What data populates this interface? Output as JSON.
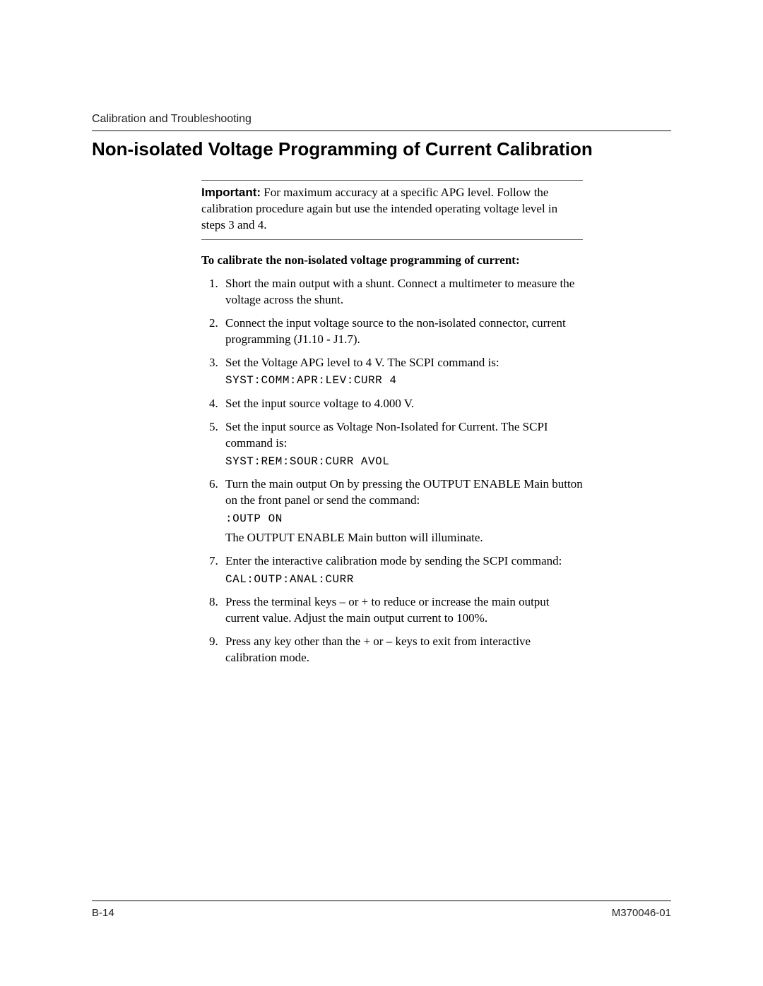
{
  "header": {
    "breadcrumb": "Calibration and Troubleshooting"
  },
  "title": "Non-isolated Voltage Programming of Current Calibration",
  "important": {
    "label": "Important:",
    "text": "For maximum accuracy at a specific APG level. Follow the calibration procedure again but use the intended operating voltage level in steps 3 and 4."
  },
  "subheading": "To calibrate the non-isolated voltage programming of current:",
  "steps": {
    "s1": "Short the main output with a shunt. Connect a multimeter to measure the voltage across the shunt.",
    "s2": "Connect the input voltage source to the non-isolated connector, current programming (J1.10 - J1.7).",
    "s3_text": "Set the Voltage APG level to 4 V. The SCPI command is:",
    "s3_code": "SYST:COMM:APR:LEV:CURR  4",
    "s4": "Set the input source voltage to 4.000 V.",
    "s5_text": "Set the input source as Voltage Non-Isolated for Current. The SCPI command is:",
    "s5_code": "SYST:REM:SOUR:CURR  AVOL",
    "s6_text": "Turn the main output On by pressing the OUTPUT ENABLE Main button on the front panel or send the command:",
    "s6_code": ":OUTP ON",
    "s6_after": "The OUTPUT ENABLE Main button will illuminate.",
    "s7_text": "Enter the interactive calibration mode by sending the SCPI command:",
    "s7_code": "CAL:OUTP:ANAL:CURR",
    "s8": "Press the terminal keys – or + to reduce or increase the main output current value. Adjust the main output current to 100%.",
    "s9": "Press any key other than the + or – keys to exit from interactive calibration mode."
  },
  "footer": {
    "page": "B-14",
    "doc": "M370046-01"
  }
}
